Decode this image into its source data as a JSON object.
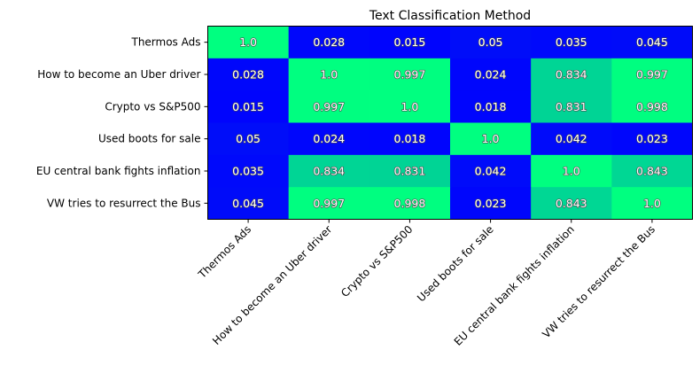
{
  "chart_data": {
    "type": "heatmap",
    "title": "Text Classification Method",
    "xlabel": "",
    "ylabel": "",
    "labels": [
      "Thermos Ads",
      "How to become an Uber driver",
      "Crypto vs S&P500",
      "Used boots for sale",
      "EU central bank fights inflation",
      "VW tries to resurrect the Bus"
    ],
    "values": [
      [
        "1.0",
        "0.028",
        "0.015",
        "0.05",
        "0.035",
        "0.045"
      ],
      [
        "0.028",
        "1.0",
        "0.997",
        "0.024",
        "0.834",
        "0.997"
      ],
      [
        "0.015",
        "0.997",
        "1.0",
        "0.018",
        "0.831",
        "0.998"
      ],
      [
        "0.05",
        "0.024",
        "0.018",
        "1.0",
        "0.042",
        "0.023"
      ],
      [
        "0.035",
        "0.834",
        "0.831",
        "0.042",
        "1.0",
        "0.843"
      ],
      [
        "0.045",
        "0.997",
        "0.998",
        "0.023",
        "0.843",
        "1.0"
      ]
    ],
    "colormap": "winter",
    "colors": {
      "low": "#0000ff",
      "high": "#00ff80"
    }
  }
}
